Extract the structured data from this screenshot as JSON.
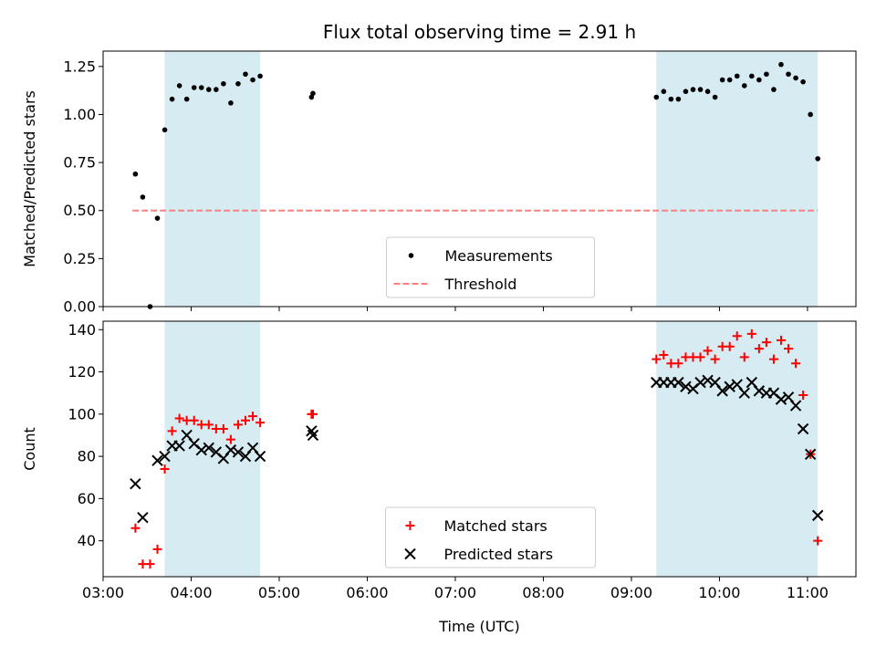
{
  "chart_data": [
    {
      "type": "scatter",
      "title": "Flux total observing time = 2.91 h",
      "xlabel": "",
      "ylabel": "Matched/Predicted stars",
      "xlim": [
        "03:00",
        "11:33"
      ],
      "ylim": [
        0,
        1.33
      ],
      "yticks": [
        "0.00",
        "0.25",
        "0.50",
        "0.75",
        "1.00",
        "1.25"
      ],
      "xticks": [
        "03:00",
        "04:00",
        "05:00",
        "06:00",
        "07:00",
        "08:00",
        "09:00",
        "10:00",
        "11:00"
      ],
      "grid": false,
      "legend_position": "lower-center",
      "shaded_spans": [
        {
          "start": "03:42",
          "end": "04:47"
        },
        {
          "start": "09:17",
          "end": "11:07"
        }
      ],
      "series": [
        {
          "name": "Measurements",
          "marker": "dot",
          "color": "#000000",
          "x": [
            "03:22",
            "03:27",
            "03:32",
            "03:37",
            "03:42",
            "03:47",
            "03:52",
            "03:57",
            "04:02",
            "04:07",
            "04:12",
            "04:17",
            "04:22",
            "04:27",
            "04:32",
            "04:37",
            "04:42",
            "04:47",
            "05:22",
            "05:23",
            "09:17",
            "09:22",
            "09:27",
            "09:32",
            "09:37",
            "09:42",
            "09:47",
            "09:52",
            "09:57",
            "10:02",
            "10:07",
            "10:12",
            "10:17",
            "10:22",
            "10:27",
            "10:32",
            "10:37",
            "10:42",
            "10:47",
            "10:52",
            "10:57",
            "11:02",
            "11:07"
          ],
          "y": [
            0.69,
            0.57,
            0.0,
            0.46,
            0.92,
            1.08,
            1.15,
            1.08,
            1.14,
            1.14,
            1.13,
            1.13,
            1.16,
            1.06,
            1.16,
            1.21,
            1.18,
            1.2,
            1.09,
            1.11,
            1.09,
            1.12,
            1.08,
            1.08,
            1.12,
            1.13,
            1.13,
            1.12,
            1.09,
            1.18,
            1.18,
            1.2,
            1.15,
            1.2,
            1.18,
            1.21,
            1.13,
            1.26,
            1.21,
            1.19,
            1.17,
            1.0,
            0.77
          ]
        },
        {
          "name": "Threshold",
          "style": "dashed-line",
          "color": "#ff7f7f",
          "x": [
            "03:20",
            "11:07"
          ],
          "y": [
            0.5,
            0.5
          ]
        }
      ]
    },
    {
      "type": "scatter",
      "title": "",
      "xlabel": "Time (UTC)",
      "ylabel": "Count",
      "xlim": [
        "03:00",
        "11:33"
      ],
      "ylim": [
        23,
        144
      ],
      "yticks": [
        "40",
        "60",
        "80",
        "100",
        "120",
        "140"
      ],
      "xticks": [
        "03:00",
        "04:00",
        "05:00",
        "06:00",
        "07:00",
        "08:00",
        "09:00",
        "10:00",
        "11:00"
      ],
      "grid": false,
      "legend_position": "lower-center",
      "shaded_spans": [
        {
          "start": "03:42",
          "end": "04:47"
        },
        {
          "start": "09:17",
          "end": "11:07"
        }
      ],
      "series": [
        {
          "name": "Matched stars",
          "marker": "plus",
          "color": "#ff0000",
          "x": [
            "03:22",
            "03:27",
            "03:32",
            "03:37",
            "03:42",
            "03:47",
            "03:52",
            "03:57",
            "04:02",
            "04:07",
            "04:12",
            "04:17",
            "04:22",
            "04:27",
            "04:32",
            "04:37",
            "04:42",
            "04:47",
            "05:22",
            "05:23",
            "09:17",
            "09:22",
            "09:27",
            "09:32",
            "09:37",
            "09:42",
            "09:47",
            "09:52",
            "09:57",
            "10:02",
            "10:07",
            "10:12",
            "10:17",
            "10:22",
            "10:27",
            "10:32",
            "10:37",
            "10:42",
            "10:47",
            "10:52",
            "10:57",
            "11:02",
            "11:07"
          ],
          "y": [
            46,
            29,
            29,
            36,
            74,
            92,
            98,
            97,
            97,
            95,
            95,
            93,
            93,
            88,
            95,
            97,
            99,
            96,
            100,
            100,
            126,
            128,
            124,
            124,
            127,
            127,
            127,
            130,
            126,
            132,
            132,
            137,
            127,
            138,
            131,
            134,
            126,
            135,
            131,
            124,
            109,
            81,
            40
          ]
        },
        {
          "name": "Predicted stars",
          "marker": "x",
          "color": "#000000",
          "x": [
            "03:22",
            "03:27",
            "03:37",
            "03:42",
            "03:47",
            "03:52",
            "03:57",
            "04:02",
            "04:07",
            "04:12",
            "04:17",
            "04:22",
            "04:27",
            "04:32",
            "04:37",
            "04:42",
            "04:47",
            "05:22",
            "05:23",
            "09:17",
            "09:22",
            "09:27",
            "09:32",
            "09:37",
            "09:42",
            "09:47",
            "09:52",
            "09:57",
            "10:02",
            "10:07",
            "10:12",
            "10:17",
            "10:22",
            "10:27",
            "10:32",
            "10:37",
            "10:42",
            "10:47",
            "10:52",
            "10:57",
            "11:02",
            "11:07"
          ],
          "y": [
            67,
            51,
            78,
            80,
            85,
            85,
            90,
            86,
            83,
            84,
            82,
            79,
            83,
            82,
            80,
            84,
            80,
            92,
            90,
            115,
            115,
            115,
            115,
            113,
            112,
            115,
            116,
            115,
            111,
            113,
            114,
            110,
            115,
            111,
            110,
            110,
            107,
            108,
            104,
            93,
            81,
            52
          ]
        }
      ]
    }
  ]
}
